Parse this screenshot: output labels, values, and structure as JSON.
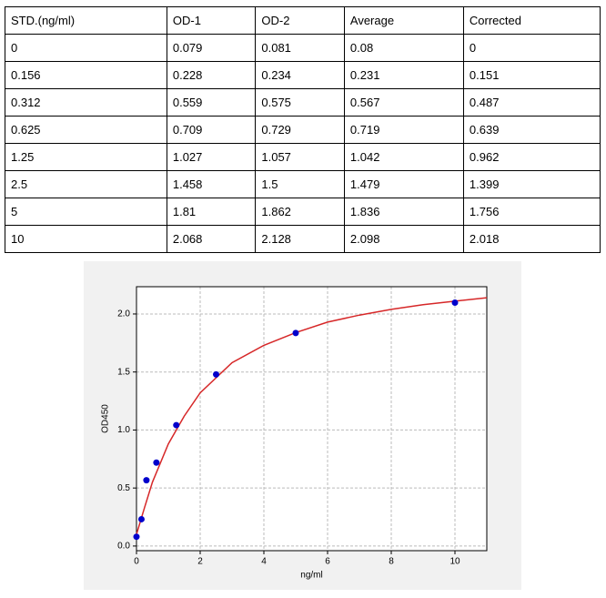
{
  "table": {
    "header": [
      "STD.(ng/ml)",
      "OD-1",
      "OD-2",
      "Average",
      "Corrected"
    ],
    "rows": [
      [
        "0",
        "0.079",
        "0.081",
        "0.08",
        "0"
      ],
      [
        "0.156",
        "0.228",
        "0.234",
        "0.231",
        "0.151"
      ],
      [
        "0.312",
        "0.559",
        "0.575",
        "0.567",
        "0.487"
      ],
      [
        "0.625",
        "0.709",
        "0.729",
        "0.719",
        "0.639"
      ],
      [
        "1.25",
        "1.027",
        "1.057",
        "1.042",
        "0.962"
      ],
      [
        "2.5",
        "1.458",
        "1.5",
        "1.479",
        "1.399"
      ],
      [
        "5",
        "1.81",
        "1.862",
        "1.836",
        "1.756"
      ],
      [
        "10",
        "2.068",
        "2.128",
        "2.098",
        "2.018"
      ]
    ]
  },
  "chart_data": {
    "type": "scatter",
    "xlabel": "ng/ml",
    "ylabel": "OD450",
    "xlim": [
      0,
      11
    ],
    "ylim": [
      -0.04,
      2.235
    ],
    "xticks": [
      0,
      2,
      4,
      6,
      8,
      10
    ],
    "yticks": [
      {
        "value": 0,
        "label": "0.0"
      },
      0.5,
      {
        "value": 1,
        "label": "1.0"
      },
      1.5,
      {
        "value": 2,
        "label": "2.0"
      }
    ],
    "grid": true,
    "series": [
      {
        "mode": "line",
        "color": "#d62728",
        "x": [
          0,
          0.25,
          0.5,
          1,
          1.5,
          2,
          3,
          4,
          5,
          6,
          7,
          8,
          9,
          10,
          11
        ],
        "values": [
          0.1,
          0.33,
          0.55,
          0.88,
          1.12,
          1.32,
          1.58,
          1.73,
          1.84,
          1.93,
          1.99,
          2.04,
          2.08,
          2.11,
          2.14
        ]
      },
      {
        "mode": "markers",
        "color": "#0000cc",
        "x": [
          0,
          0.156,
          0.312,
          0.625,
          1.25,
          2.5,
          5,
          10
        ],
        "values": [
          0.08,
          0.231,
          0.567,
          0.719,
          1.042,
          1.479,
          1.836,
          2.098
        ]
      }
    ]
  }
}
